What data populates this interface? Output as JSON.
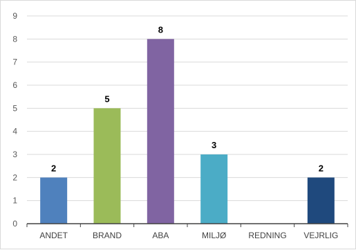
{
  "chart_data": {
    "type": "bar",
    "categories": [
      "ANDET",
      "BRAND",
      "ABA",
      "MILJØ",
      "REDNING",
      "VEJRLIG"
    ],
    "values": [
      2,
      5,
      8,
      3,
      0,
      2
    ],
    "data_labels": [
      "2",
      "5",
      "8",
      "3",
      "",
      "2"
    ],
    "colors": [
      "#4f81bd",
      "#9bbb59",
      "#8064a2",
      "#4bacc6",
      "#f79646",
      "#1f497d"
    ],
    "title": "",
    "xlabel": "",
    "ylabel": "",
    "ylim": [
      0,
      9
    ],
    "yticks": [
      0,
      1,
      2,
      3,
      4,
      5,
      6,
      7,
      8,
      9
    ],
    "grid": true,
    "legend": "none"
  }
}
